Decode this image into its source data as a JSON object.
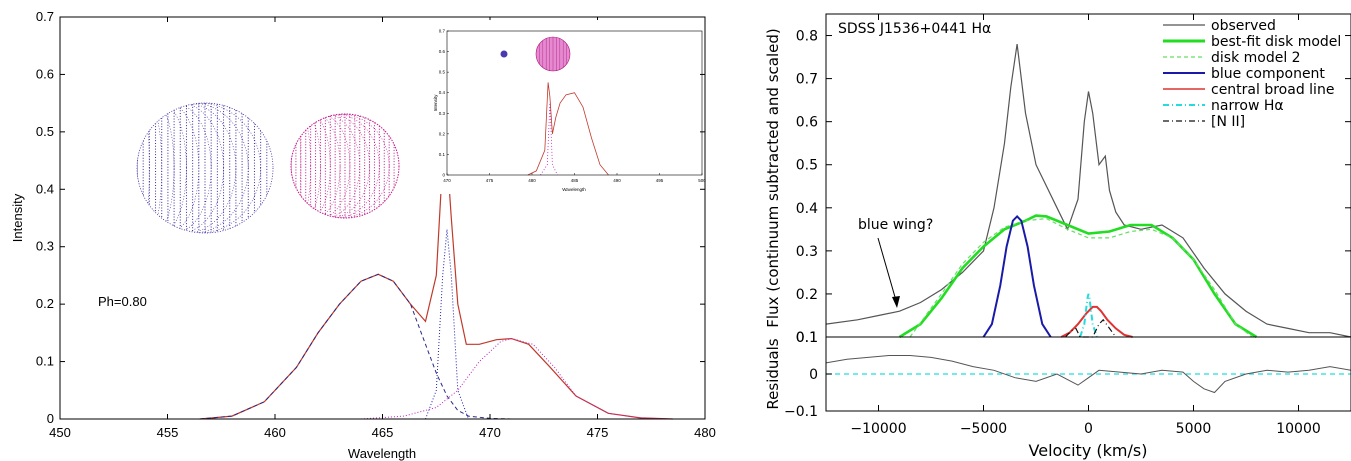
{
  "chart_data": [
    {
      "type": "line",
      "xlabel": "Wavelength",
      "ylabel": "Intensity",
      "xlim": [
        450,
        480
      ],
      "ylim": [
        0,
        0.7
      ],
      "xticks": [
        "450",
        "455",
        "460",
        "465",
        "470",
        "475",
        "480"
      ],
      "yticks": [
        "0",
        "0.1",
        "0.2",
        "0.3",
        "0.4",
        "0.5",
        "0.6",
        "0.7"
      ],
      "annotation": "Ph=0.80",
      "series": [
        {
          "color": "#c0392b",
          "style": "solid",
          "x": [
            456.5,
            458,
            459.5,
            461,
            462,
            463,
            464,
            464.8,
            465.5,
            466.3,
            467,
            467.5,
            467.8,
            468,
            468.2,
            468.5,
            468.9,
            469.5,
            470.3,
            471,
            471.8,
            472.8,
            474,
            475.5,
            477,
            478.5
          ],
          "y": [
            0,
            0.005,
            0.03,
            0.09,
            0.15,
            0.2,
            0.24,
            0.252,
            0.24,
            0.2,
            0.17,
            0.25,
            0.45,
            0.46,
            0.35,
            0.2,
            0.13,
            0.13,
            0.138,
            0.14,
            0.13,
            0.09,
            0.04,
            0.01,
            0.002,
            0
          ]
        },
        {
          "color": "#2a2a8a",
          "style": "dashed",
          "x": [
            456.5,
            458,
            459.5,
            461,
            462,
            463,
            464,
            464.8,
            465.5,
            466.3,
            467,
            467.5,
            468,
            468.5,
            469,
            470,
            471
          ],
          "y": [
            0,
            0.005,
            0.03,
            0.09,
            0.15,
            0.2,
            0.24,
            0.252,
            0.24,
            0.2,
            0.13,
            0.08,
            0.04,
            0.015,
            0.005,
            0.001,
            0
          ]
        },
        {
          "color": "#1f1fb4",
          "style": "dotted",
          "x": [
            467,
            467.5,
            467.8,
            468,
            468.2,
            468.5,
            469
          ],
          "y": [
            0,
            0.05,
            0.25,
            0.33,
            0.25,
            0.05,
            0
          ]
        },
        {
          "color": "#c020c0",
          "style": "dotted",
          "x": [
            464,
            466,
            467.5,
            468.5,
            469.5,
            470.5,
            471,
            472,
            473,
            474,
            475.5,
            477,
            478.5
          ],
          "y": [
            0,
            0.005,
            0.02,
            0.05,
            0.1,
            0.135,
            0.14,
            0.13,
            0.09,
            0.04,
            0.01,
            0.002,
            0
          ]
        }
      ],
      "inset": {
        "xlim": [
          470,
          500
        ],
        "ylim": [
          0,
          0.7
        ],
        "xticks": [
          "470",
          "475",
          "480",
          "485",
          "490",
          "495",
          "500"
        ],
        "yticks": [
          "0",
          "0.1",
          "0.2",
          "0.3",
          "0.4",
          "0.5",
          "0.6",
          "0.7"
        ],
        "xlabel": "Wavelength",
        "ylabel": "Intensity",
        "series": [
          {
            "color": "#c0392b",
            "style": "solid",
            "x": [
              479.5,
              480.5,
              481.5,
              481.9,
              482.1,
              482.4,
              482.8,
              483.3,
              484,
              485,
              486,
              487,
              488,
              489
            ],
            "y": [
              0,
              0.02,
              0.12,
              0.45,
              0.38,
              0.2,
              0.28,
              0.35,
              0.39,
              0.4,
              0.33,
              0.18,
              0.05,
              0
            ]
          },
          {
            "color": "#c020c0",
            "style": "dotted",
            "x": [
              481,
              481.8,
              482.1,
              482.4,
              483
            ],
            "y": [
              0,
              0.05,
              0.35,
              0.05,
              0
            ]
          }
        ]
      }
    },
    {
      "type": "line",
      "title": "SDSS J1536+0441 Hα",
      "xlabel": "Velocity (km/s)",
      "ylabel": "Flux (continuum subtracted and scaled)",
      "ylabel_bottom": "Residuals",
      "xlim": [
        -12500,
        12500
      ],
      "ylim": [
        0.1,
        0.85
      ],
      "ylim_residuals": [
        -0.1,
        0.1
      ],
      "xticks": [
        "-10000",
        "-5000",
        "0",
        "5000",
        "10000"
      ],
      "yticks": [
        "0.1",
        "0.2",
        "0.3",
        "0.4",
        "0.5",
        "0.6",
        "0.7",
        "0.8"
      ],
      "yticks_residuals": [
        "-0.1",
        "0",
        "0.1"
      ],
      "annotation": "blue wing?",
      "legend_position": "top-right",
      "series": [
        {
          "name": "observed",
          "color": "#555555",
          "style": "solid",
          "x": [
            -12500,
            -11000,
            -10000,
            -9000,
            -8000,
            -7000,
            -6000,
            -5000,
            -4500,
            -4000,
            -3700,
            -3400,
            -3000,
            -2500,
            -2000,
            -1500,
            -1000,
            -500,
            -200,
            0,
            200,
            500,
            800,
            1000,
            1300,
            1700,
            2500,
            3500,
            4500,
            5500,
            6500,
            7500,
            8500,
            9500,
            10500,
            11500,
            12500
          ],
          "y": [
            0.13,
            0.14,
            0.15,
            0.16,
            0.18,
            0.21,
            0.25,
            0.3,
            0.4,
            0.55,
            0.68,
            0.78,
            0.62,
            0.5,
            0.45,
            0.4,
            0.35,
            0.42,
            0.6,
            0.67,
            0.62,
            0.5,
            0.52,
            0.44,
            0.39,
            0.36,
            0.35,
            0.36,
            0.33,
            0.26,
            0.2,
            0.16,
            0.13,
            0.12,
            0.11,
            0.11,
            0.1
          ]
        },
        {
          "name": "best-fit disk model",
          "color": "#22dd22",
          "style": "solid",
          "x": [
            -9000,
            -8000,
            -7000,
            -6000,
            -5000,
            -4000,
            -3000,
            -2500,
            -2000,
            -1000,
            0,
            1000,
            2000,
            3000,
            4000,
            5000,
            6000,
            7000,
            8000
          ],
          "y": [
            0.1,
            0.13,
            0.19,
            0.26,
            0.31,
            0.35,
            0.37,
            0.382,
            0.38,
            0.36,
            0.34,
            0.345,
            0.36,
            0.36,
            0.33,
            0.28,
            0.2,
            0.13,
            0.1
          ]
        },
        {
          "name": "disk model 2",
          "color": "#66dd66",
          "style": "dashed",
          "x": [
            -8500,
            -7000,
            -6000,
            -5000,
            -4000,
            -3000,
            -2000,
            -1000,
            0,
            1000,
            2000,
            3000,
            4000,
            5000,
            6000,
            7000,
            7800
          ],
          "y": [
            0.1,
            0.2,
            0.27,
            0.32,
            0.355,
            0.37,
            0.375,
            0.35,
            0.33,
            0.33,
            0.345,
            0.35,
            0.33,
            0.28,
            0.21,
            0.13,
            0.1
          ]
        },
        {
          "name": "blue component",
          "color": "#1a1aa8",
          "style": "solid",
          "x": [
            -5000,
            -4600,
            -4200,
            -3900,
            -3600,
            -3400,
            -3200,
            -2900,
            -2600,
            -2200,
            -1800
          ],
          "y": [
            0.1,
            0.13,
            0.22,
            0.31,
            0.37,
            0.38,
            0.37,
            0.31,
            0.22,
            0.13,
            0.1
          ]
        },
        {
          "name": "central broad line",
          "color": "#dd3333",
          "style": "solid",
          "x": [
            -1300,
            -900,
            -500,
            -100,
            200,
            400,
            600,
            900,
            1300,
            1700,
            2100
          ],
          "y": [
            0.1,
            0.11,
            0.13,
            0.155,
            0.17,
            0.17,
            0.16,
            0.14,
            0.12,
            0.105,
            0.1
          ]
        },
        {
          "name": "narrow Hα",
          "color": "#22dddd",
          "style": "dashdot",
          "x": [
            -400,
            -200,
            -50,
            0,
            50,
            200,
            400
          ],
          "y": [
            0.1,
            0.13,
            0.19,
            0.2,
            0.19,
            0.13,
            0.1
          ]
        },
        {
          "name": "[N II]",
          "color": "#111111",
          "style": "dashdot",
          "x": [
            -1100,
            -800,
            -600,
            -400,
            200,
            500,
            700,
            1000,
            1300
          ],
          "y": [
            0.1,
            0.115,
            0.12,
            0.1,
            0.1,
            0.13,
            0.14,
            0.12,
            0.1
          ]
        }
      ],
      "residuals": {
        "color": "#555555",
        "x": [
          -12500,
          -11500,
          -10500,
          -9500,
          -8500,
          -7500,
          -6500,
          -5500,
          -4500,
          -3500,
          -2500,
          -1500,
          -500,
          0,
          500,
          1500,
          2500,
          3500,
          4500,
          5000,
          5500,
          6000,
          6500,
          7500,
          8500,
          9500,
          10500,
          11500,
          12500
        ],
        "y": [
          0.03,
          0.04,
          0.045,
          0.05,
          0.05,
          0.045,
          0.035,
          0.02,
          0.01,
          -0.01,
          -0.02,
          0,
          -0.03,
          -0.01,
          0.01,
          0.005,
          0,
          0.01,
          0.005,
          -0.02,
          -0.04,
          -0.05,
          -0.02,
          0,
          0.01,
          0.005,
          0.01,
          0.02,
          0.01
        ]
      }
    }
  ]
}
